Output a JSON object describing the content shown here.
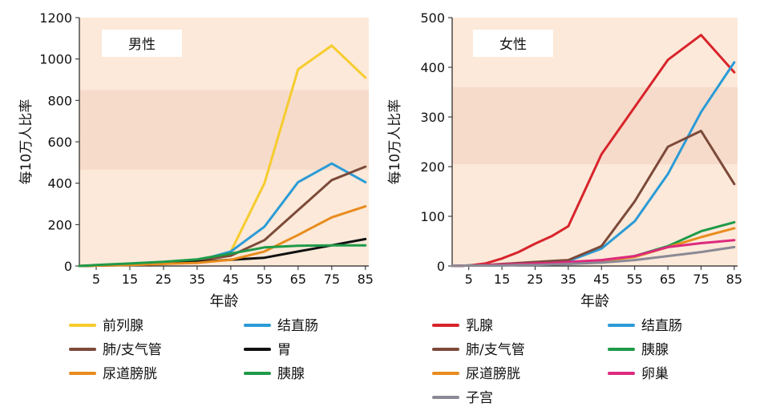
{
  "chart_data": [
    {
      "type": "line",
      "title": "男性",
      "xlabel": "年龄",
      "ylabel": "每10万人比率",
      "x": [
        0,
        5,
        15,
        25,
        35,
        45,
        55,
        65,
        75,
        85
      ],
      "xticks": [
        5,
        15,
        25,
        35,
        45,
        55,
        65,
        75,
        85
      ],
      "xlim": [
        0,
        86
      ],
      "ylim": [
        0,
        1200
      ],
      "yticks": [
        0,
        200,
        400,
        600,
        800,
        1000,
        1200
      ],
      "background": "#fce9d9",
      "band_color": "#f6dbca",
      "series": [
        {
          "name": "前列腺",
          "color": "#f6cc2e",
          "values": [
            0,
            2,
            5,
            10,
            20,
            70,
            400,
            950,
            1065,
            910
          ]
        },
        {
          "name": "结直肠",
          "color": "#2b9bd6",
          "values": [
            0,
            2,
            8,
            15,
            25,
            70,
            190,
            405,
            495,
            405
          ]
        },
        {
          "name": "肺/支气管",
          "color": "#7c4a3a",
          "values": [
            0,
            2,
            8,
            15,
            25,
            50,
            125,
            270,
            415,
            480
          ]
        },
        {
          "name": "胃",
          "color": "#111111",
          "values": [
            0,
            2,
            5,
            12,
            20,
            30,
            40,
            70,
            100,
            130
          ]
        },
        {
          "name": "尿道膀胱",
          "color": "#e88c1e",
          "values": [
            0,
            2,
            5,
            10,
            15,
            30,
            70,
            150,
            235,
            288
          ]
        },
        {
          "name": "胰腺",
          "color": "#1f9a49",
          "values": [
            0,
            5,
            12,
            20,
            32,
            60,
            90,
            98,
            100,
            100
          ]
        }
      ]
    },
    {
      "type": "line",
      "title": "女性",
      "xlabel": "年龄",
      "ylabel": "每10万人比率",
      "x": [
        0,
        5,
        10,
        15,
        20,
        25,
        30,
        35,
        45,
        55,
        65,
        75,
        85
      ],
      "xticks": [
        5,
        15,
        25,
        35,
        45,
        55,
        65,
        75,
        85
      ],
      "xlim": [
        0,
        86
      ],
      "ylim": [
        0,
        500
      ],
      "yticks": [
        0,
        100,
        200,
        300,
        400,
        500
      ],
      "background": "#fce9d9",
      "band_color": "#f6dbca",
      "series": [
        {
          "name": "乳腺",
          "color": "#d8242b",
          "values": [
            0,
            1,
            5,
            15,
            28,
            45,
            60,
            80,
            225,
            320,
            415,
            465,
            390
          ]
        },
        {
          "name": "结直肠",
          "color": "#2b9bd6",
          "values": [
            0,
            1,
            2,
            3,
            5,
            7,
            9,
            10,
            35,
            90,
            185,
            310,
            410
          ]
        },
        {
          "name": "肺/支气管",
          "color": "#7c4a3a",
          "values": [
            0,
            1,
            2,
            4,
            6,
            8,
            10,
            12,
            40,
            130,
            240,
            272,
            165
          ]
        },
        {
          "name": "胰腺",
          "color": "#1f9a49",
          "values": [
            0,
            1,
            1,
            2,
            3,
            3,
            4,
            5,
            10,
            20,
            40,
            70,
            88
          ]
        },
        {
          "name": "尿道膀胱",
          "color": "#e88c1e",
          "values": [
            0,
            1,
            1,
            2,
            3,
            3,
            4,
            5,
            10,
            18,
            38,
            58,
            76
          ]
        },
        {
          "name": "卵巢",
          "color": "#dc2a7e",
          "values": [
            0,
            1,
            2,
            3,
            4,
            5,
            6,
            8,
            12,
            20,
            38,
            46,
            52
          ]
        },
        {
          "name": "子宫",
          "color": "#8b8995",
          "values": [
            0,
            1,
            1,
            1,
            2,
            2,
            3,
            4,
            7,
            12,
            20,
            28,
            38
          ]
        }
      ]
    }
  ]
}
